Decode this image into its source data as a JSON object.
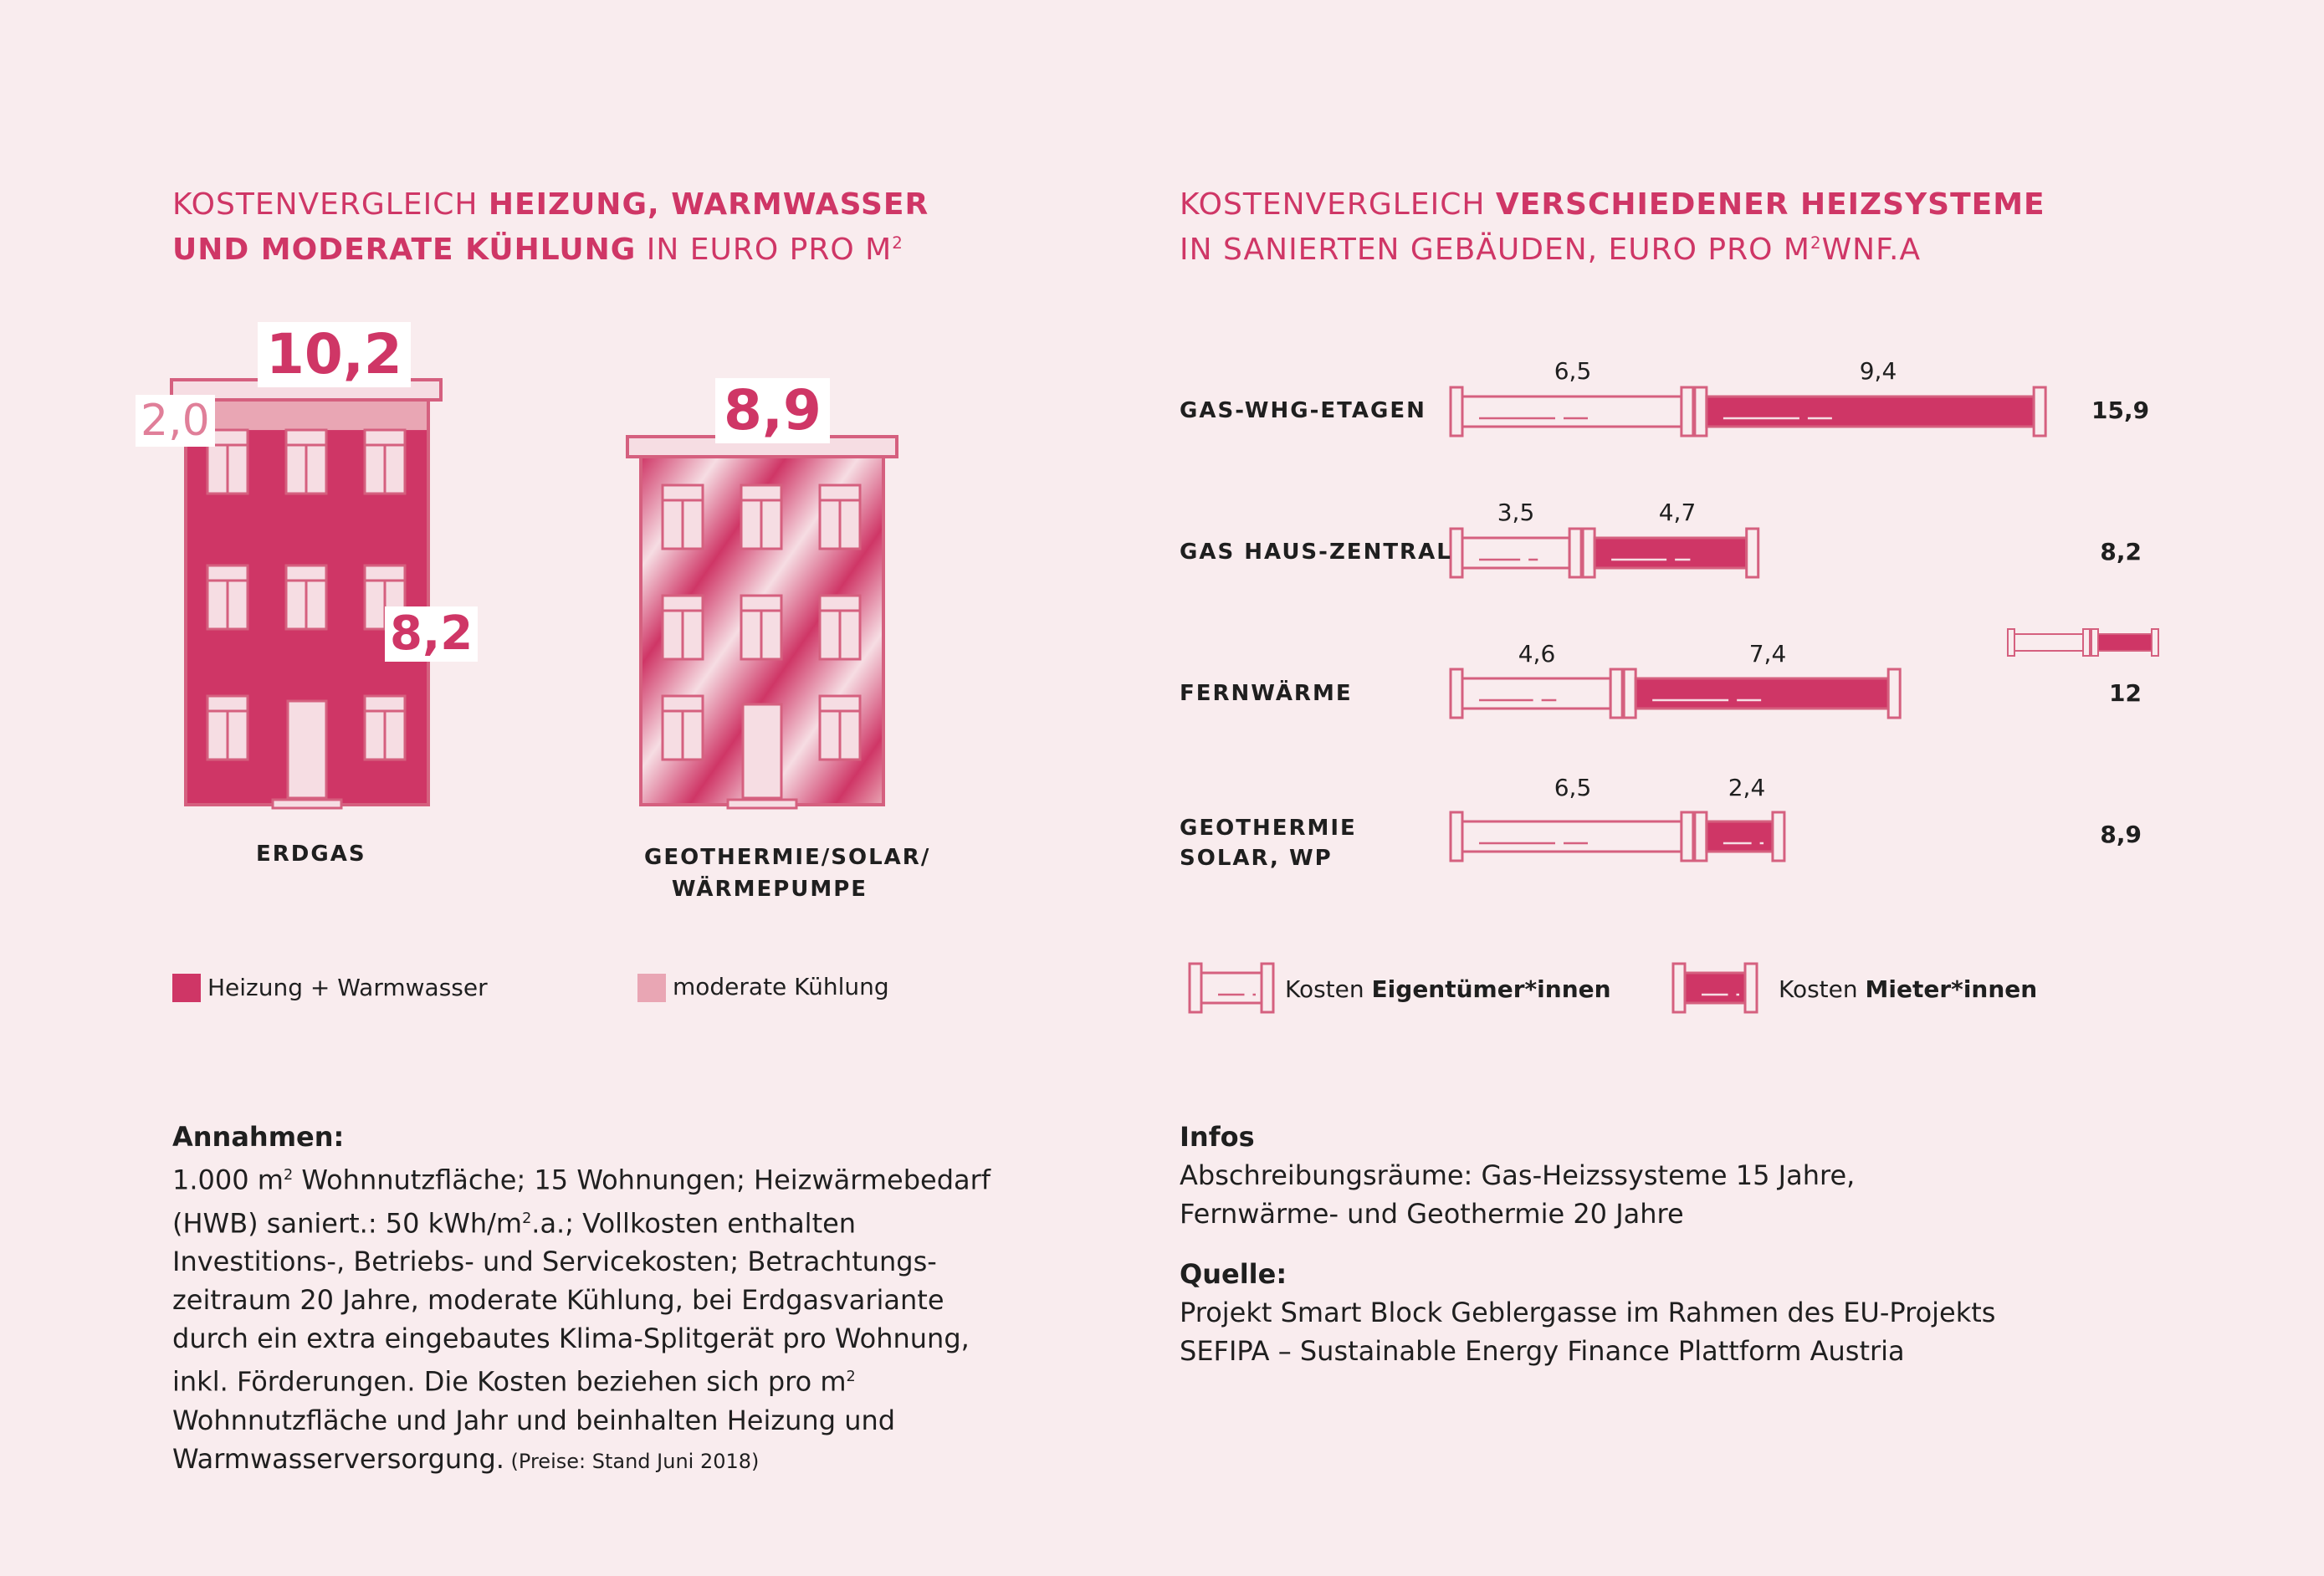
{
  "left": {
    "title_part1": "KOSTENVERGLEICH ",
    "title_bold1": "HEIZUNG, WARMWASSER",
    "title_bold2": "UND MODERATE KÜHLUNG",
    "title_part2": " IN EURO PRO M",
    "title_sup": "2"
  },
  "right": {
    "title_part1": "KOSTENVERGLEICH ",
    "title_bold1": "VERSCHIEDENER HEIZSYSTEME",
    "title_line2": "IN SANIERTEN GEBÄUDEN, EURO PRO M",
    "title_sup": "2",
    "title_line2b": "WNF.A"
  },
  "chart_data": [
    {
      "type": "bar",
      "categories": [
        "ERDGAS",
        "GEOTHERMIE/SOLAR/ WÄRMEPUMPE"
      ],
      "category_lines": [
        [
          "ERDGAS"
        ],
        [
          "GEOTHERMIE/SOLAR/",
          "WÄRMEPUMPE"
        ]
      ],
      "totals": [
        "10,2",
        "8,9"
      ],
      "series": [
        {
          "name": "Heizung + Warmwasser",
          "values": [
            8.2,
            null
          ],
          "labels": [
            "8,2",
            ""
          ],
          "color": "#cf3666"
        },
        {
          "name": "moderate Kühlung",
          "values": [
            2.0,
            null
          ],
          "labels": [
            "2,0",
            ""
          ],
          "color": "#e9a6b4"
        }
      ],
      "legend": [
        "Heizung + Warmwasser",
        "moderate Kühlung"
      ]
    },
    {
      "type": "bar",
      "orientation": "horizontal",
      "stacked": true,
      "categories": [
        "GAS-WHG-ETAGEN",
        "GAS HAUS-ZENTRAL",
        "FERNWÄRME",
        "GEOTHERMIE SOLAR, WP"
      ],
      "category_lines": [
        [
          "GAS-WHG-ETAGEN"
        ],
        [
          "GAS HAUS-ZENTRAL"
        ],
        [
          "FERNWÄRME"
        ],
        [
          "GEOTHERMIE",
          "SOLAR, WP"
        ]
      ],
      "series": [
        {
          "name": "Kosten Eigentümer*innen",
          "values": [
            6.5,
            3.5,
            4.6,
            6.5
          ],
          "labels": [
            "6,5",
            "3,5",
            "4,6",
            "6,5"
          ],
          "color": "#f9ecee"
        },
        {
          "name": "Kosten Mieter*innen",
          "values": [
            9.4,
            4.7,
            7.4,
            2.4
          ],
          "labels": [
            "9,4",
            "4,7",
            "7,4",
            "2,4"
          ],
          "color": "#cf3666"
        }
      ],
      "totals": [
        "15,9",
        "8,2",
        "12",
        "8,9"
      ]
    }
  ],
  "legend_left": {
    "item1": "Heizung + Warmwasser",
    "item2": "moderate Kühlung"
  },
  "legend_right": {
    "item1_prefix": "Kosten ",
    "item1_bold": "Eigentümer*innen",
    "item2_prefix": "Kosten ",
    "item2_bold": "Mieter*innen"
  },
  "annahmen": {
    "heading": "Annahmen:",
    "line1a": "1.000 m",
    "line1sup": "2",
    "line1b": " Wohnnutzfläche; 15 Wohnungen; Heizwärmebedarf",
    "line2a": "(HWB) saniert.: 50 kWh/m",
    "line2sup": "2",
    "line2b": ".a.; Vollkosten enthalten",
    "line3": "Investitions-, Betriebs- und Servicekosten; Betrachtungs-",
    "line4": "zeitraum 20 Jahre, moderate Kühlung, bei Erdgasvariante",
    "line5": "durch ein extra eingebautes Klima-Splitgerät pro Wohnung,",
    "line6a": "inkl. Förderungen. Die Kosten beziehen sich pro m",
    "line6sup": "2",
    "line7": "Wohnnutzfläche und Jahr und beinhalten Heizung und",
    "line8": "Warmwasserversorgung.",
    "line8small": " (Preise: Stand Juni 2018)"
  },
  "infos": {
    "heading": "Infos",
    "line1": "Abschreibungsräume: Gas-Heizssysteme 15 Jahre,",
    "line2": "Fernwärme- und Geothermie 20 Jahre"
  },
  "quelle": {
    "heading": "Quelle:",
    "line1": "Projekt Smart Block Geblergasse im Rahmen des EU-Projekts",
    "line2": "SEFIPA – Sustainable Energy Finance Plattform Austria"
  },
  "colors": {
    "accent": "#cf3666",
    "light": "#e9a6b4",
    "background": "#f9ecee"
  }
}
